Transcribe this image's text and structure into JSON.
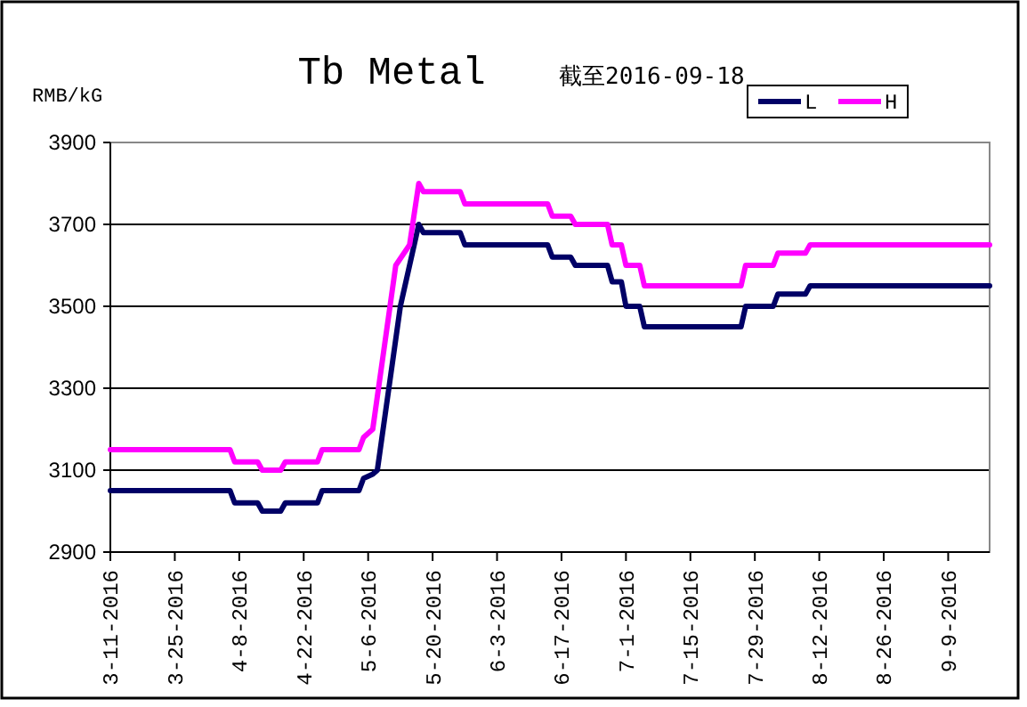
{
  "chart_data": {
    "type": "line",
    "title": "Tb  Metal",
    "subtitle": "截至2016-09-18",
    "ylabel": "RMB/kG",
    "xlim": [
      "2016-03-11",
      "2016-09-18"
    ],
    "xticks": [
      {
        "value": "2016-03-11",
        "label": "3-11-2016"
      },
      {
        "value": "2016-03-25",
        "label": "3-25-2016"
      },
      {
        "value": "2016-04-08",
        "label": "4-8-2016"
      },
      {
        "value": "2016-04-22",
        "label": "4-22-2016"
      },
      {
        "value": "2016-05-06",
        "label": "5-6-2016"
      },
      {
        "value": "2016-05-20",
        "label": "5-20-2016"
      },
      {
        "value": "2016-06-03",
        "label": "6-3-2016"
      },
      {
        "value": "2016-06-17",
        "label": "6-17-2016"
      },
      {
        "value": "2016-07-01",
        "label": "7-1-2016"
      },
      {
        "value": "2016-07-15",
        "label": "7-15-2016"
      },
      {
        "value": "2016-07-29",
        "label": "7-29-2016"
      },
      {
        "value": "2016-08-12",
        "label": "8-12-2016"
      },
      {
        "value": "2016-08-26",
        "label": "8-26-2016"
      },
      {
        "value": "2016-09-09",
        "label": "9-9-2016"
      }
    ],
    "ylim": [
      2900,
      3900
    ],
    "yticks": [
      2900,
      3100,
      3300,
      3500,
      3700,
      3900
    ],
    "grid": "y",
    "legend": "top right",
    "marker": "none",
    "line_style": "solid",
    "series": [
      {
        "name": "L",
        "color": "#000066",
        "x": [
          "2016-03-11",
          "2016-04-06",
          "2016-04-07",
          "2016-04-12",
          "2016-04-13",
          "2016-04-17",
          "2016-04-18",
          "2016-04-25",
          "2016-04-26",
          "2016-05-04",
          "2016-05-05",
          "2016-05-07",
          "2016-05-08",
          "2016-05-13",
          "2016-05-15",
          "2016-05-17",
          "2016-05-18",
          "2016-05-26",
          "2016-05-27",
          "2016-06-14",
          "2016-06-15",
          "2016-06-19",
          "2016-06-20",
          "2016-06-27",
          "2016-06-28",
          "2016-06-30",
          "2016-07-01",
          "2016-07-04",
          "2016-07-05",
          "2016-07-26",
          "2016-07-27",
          "2016-08-02",
          "2016-08-03",
          "2016-08-09",
          "2016-08-10",
          "2016-09-18"
        ],
        "values": [
          3050,
          3050,
          3020,
          3020,
          3000,
          3000,
          3020,
          3020,
          3050,
          3050,
          3080,
          3090,
          3100,
          3500,
          3600,
          3700,
          3680,
          3680,
          3650,
          3650,
          3620,
          3620,
          3600,
          3600,
          3560,
          3560,
          3500,
          3500,
          3450,
          3450,
          3500,
          3500,
          3530,
          3530,
          3550,
          3550
        ]
      },
      {
        "name": "H",
        "color": "#ff00ff",
        "x": [
          "2016-03-11",
          "2016-04-06",
          "2016-04-07",
          "2016-04-12",
          "2016-04-13",
          "2016-04-17",
          "2016-04-18",
          "2016-04-25",
          "2016-04-26",
          "2016-05-04",
          "2016-05-05",
          "2016-05-07",
          "2016-05-12",
          "2016-05-15",
          "2016-05-17",
          "2016-05-18",
          "2016-05-26",
          "2016-05-27",
          "2016-06-14",
          "2016-06-15",
          "2016-06-19",
          "2016-06-20",
          "2016-06-27",
          "2016-06-28",
          "2016-06-30",
          "2016-07-01",
          "2016-07-04",
          "2016-07-05",
          "2016-07-26",
          "2016-07-27",
          "2016-08-02",
          "2016-08-03",
          "2016-08-09",
          "2016-08-10",
          "2016-09-18"
        ],
        "values": [
          3150,
          3150,
          3120,
          3120,
          3100,
          3100,
          3120,
          3120,
          3150,
          3150,
          3180,
          3200,
          3600,
          3650,
          3800,
          3780,
          3780,
          3750,
          3750,
          3720,
          3720,
          3700,
          3700,
          3650,
          3650,
          3600,
          3600,
          3550,
          3550,
          3600,
          3600,
          3630,
          3630,
          3650,
          3650
        ]
      }
    ]
  }
}
